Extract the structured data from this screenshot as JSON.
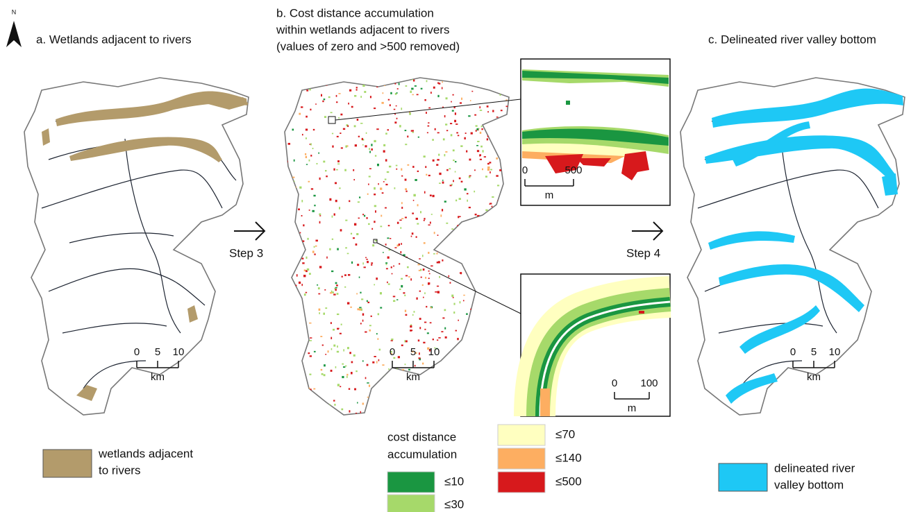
{
  "north": "N",
  "panels": [
    {
      "title": [
        "a. Wetlands adjacent to rivers"
      ],
      "scale": {
        "ticks": [
          "0",
          "5",
          "10"
        ],
        "unit": "km"
      }
    },
    {
      "title": [
        "b. Cost distance accumulation",
        "within wetlands adjacent to rivers",
        "(values of zero and >500 removed)"
      ],
      "scale": {
        "ticks": [
          "0",
          "5",
          "10"
        ],
        "unit": "km"
      }
    },
    {
      "title": [
        "c. Delineated river valley bottom"
      ],
      "scale": {
        "ticks": [
          "0",
          "5",
          "10"
        ],
        "unit": "km"
      }
    }
  ],
  "steps": [
    "Step 3",
    "Step 4"
  ],
  "insets": [
    {
      "scale": {
        "ticks": [
          "0",
          "500"
        ],
        "unit": "m"
      }
    },
    {
      "scale": {
        "ticks": [
          "0",
          "100"
        ],
        "unit": "m"
      }
    }
  ],
  "legend_a": {
    "label": [
      "wetlands adjacent",
      "to rivers"
    ],
    "color": "#b39b6b"
  },
  "legend_b": {
    "title": [
      "cost distance",
      "accumulation"
    ],
    "classes": [
      {
        "label": "≤10",
        "color": "#1a9641"
      },
      {
        "label": "≤30",
        "color": "#a6d96a"
      },
      {
        "label": "≤70",
        "color": "#ffffc0"
      },
      {
        "label": "≤140",
        "color": "#fdae61"
      },
      {
        "label": "≤500",
        "color": "#d7191c"
      }
    ]
  },
  "legend_c": {
    "label": [
      "delineated river",
      "valley bottom"
    ],
    "color": "#1ec8f5"
  }
}
